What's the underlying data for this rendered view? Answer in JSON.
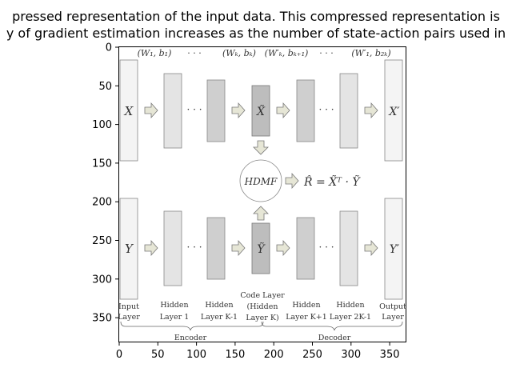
{
  "figure": {
    "title_line1": "pressed representation of the input data. This compressed representation is",
    "title_line2": "y of gradient estimation increases as the number of state-action pairs used in",
    "y_ticks": [
      "0",
      "50",
      "100",
      "150",
      "200",
      "250",
      "300",
      "350"
    ],
    "x_ticks": [
      "0",
      "50",
      "100",
      "150",
      "200",
      "250",
      "300",
      "350"
    ]
  },
  "diagram": {
    "params": {
      "w1b1": "(W₁, b₁)",
      "dots_left": "· · ·",
      "wkbk": "(Wₖ, bₖ)",
      "wkp": "(W′ₖ, bₖ₊₁)",
      "dots_right": "· · ·",
      "w1p": "(W′₁, b₂ₖ)"
    },
    "top_row": {
      "input": "X",
      "code": "X̃",
      "output": "X′"
    },
    "bottom_row": {
      "input": "Y",
      "code": "Ỹ",
      "output": "Y′"
    },
    "dots": "· · ·",
    "hdmf": "HDMF",
    "equation": "R̂ = X̃ᵀ · Ỹ",
    "layers": {
      "input": [
        "Input",
        "Layer"
      ],
      "hidden1": [
        "Hidden",
        "Layer 1"
      ],
      "hiddenK1": [
        "Hidden",
        "Layer K-1"
      ],
      "code": [
        "Code Layer",
        "(Hidden",
        "Layer K)"
      ],
      "hiddenKp1": [
        "Hidden",
        "Layer K+1"
      ],
      "hidden2K1": [
        "Hidden",
        "Layer 2K-1"
      ],
      "output": [
        "Output",
        "Layer"
      ]
    },
    "encoder": "Encoder",
    "decoder": "Decoder"
  }
}
